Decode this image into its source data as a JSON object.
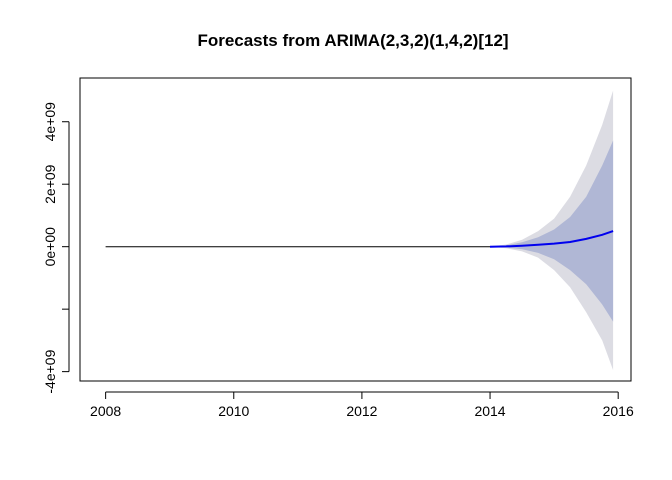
{
  "chart_data": {
    "type": "line",
    "title": "Forecasts from ARIMA(2,3,2)(1,4,2)[12]",
    "xlabel": "",
    "ylabel": "",
    "xlim": [
      2007.6,
      2016.2
    ],
    "ylim": [
      -4300000000.0,
      5400000000.0
    ],
    "x_ticks": [
      2008,
      2010,
      2012,
      2014,
      2016
    ],
    "x_tick_labels": [
      "2008",
      "2010",
      "2012",
      "2014",
      "2016"
    ],
    "y_ticks": [
      -4000000000.0,
      -2000000000.0,
      0,
      2000000000.0,
      4000000000.0
    ],
    "y_tick_labels": [
      "-4e+09",
      "",
      "0e+00",
      "2e+09",
      "4e+09"
    ],
    "colors": {
      "observed": "#000000",
      "forecast": "#0000ee",
      "pi80": "#b0b7d5",
      "pi95": "#dcdce3"
    },
    "series": [
      {
        "role": "observed",
        "x": [
          2008.0,
          2014.0
        ],
        "y": [
          0,
          0
        ]
      },
      {
        "role": "forecast",
        "x": [
          2014.0,
          2014.25,
          2014.5,
          2014.75,
          2015.0,
          2015.25,
          2015.5,
          2015.75,
          2015.92
        ],
        "y": [
          0,
          10000000.0,
          30000000.0,
          60000000.0,
          100000000.0,
          150000000.0,
          250000000.0,
          380000000.0,
          500000000.0
        ]
      },
      {
        "role": "pi80",
        "x": [
          2014.0,
          2014.25,
          2014.5,
          2014.75,
          2015.0,
          2015.25,
          2015.5,
          2015.75,
          2015.92
        ],
        "upper": [
          0,
          40000000.0,
          140000000.0,
          300000000.0,
          550000000.0,
          950000000.0,
          1600000000.0,
          2600000000.0,
          3400000000.0
        ],
        "lower": [
          0,
          -30000000.0,
          -80000000.0,
          -200000000.0,
          -400000000.0,
          -750000000.0,
          -1200000000.0,
          -1850000000.0,
          -2400000000.0
        ]
      },
      {
        "role": "pi95",
        "x": [
          2014.0,
          2014.25,
          2014.5,
          2014.75,
          2015.0,
          2015.25,
          2015.5,
          2015.75,
          2015.92
        ],
        "upper": [
          0,
          70000000.0,
          220000000.0,
          500000000.0,
          900000000.0,
          1600000000.0,
          2600000000.0,
          3900000000.0,
          5000000000.0
        ],
        "lower": [
          0,
          -50000000.0,
          -150000000.0,
          -350000000.0,
          -750000000.0,
          -1300000000.0,
          -2100000000.0,
          -3000000000.0,
          -3950000000.0
        ]
      }
    ]
  }
}
